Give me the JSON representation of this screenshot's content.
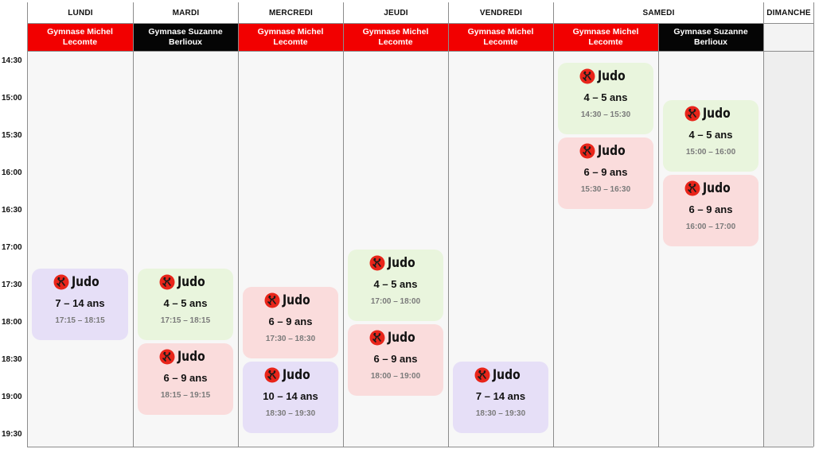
{
  "days": [
    "LUNDI",
    "MARDI",
    "MERCREDI",
    "JEUDI",
    "VENDREDI",
    "SAMEDI",
    "DIMANCHE"
  ],
  "venues": [
    {
      "name": "Gymnase Michel Lecomte",
      "color": "#f20000"
    },
    {
      "name": "Gymnase Suzanne Berlioux",
      "color": "#050505"
    },
    {
      "name": "Gymnase Michel Lecomte",
      "color": "#f20000"
    },
    {
      "name": "Gymnase Michel Lecomte",
      "color": "#f20000"
    },
    {
      "name": "Gymnase Michel Lecomte",
      "color": "#f20000"
    },
    {
      "name": "Gymnase Michel Lecomte",
      "color": "#f20000"
    },
    {
      "name": "Gymnase Suzanne Berlioux",
      "color": "#050505"
    },
    {
      "name": "",
      "color": "#f3f3f3"
    }
  ],
  "times": [
    "14:30",
    "15:00",
    "15:30",
    "16:00",
    "16:30",
    "17:00",
    "17:30",
    "18:00",
    "18:30",
    "19:00",
    "19:30"
  ],
  "sessions": [
    {
      "column": 0,
      "sport": "Judo",
      "age": "7 – 14 ans",
      "hours": "17:15 – 18:15",
      "color": "purple",
      "start": "17:15",
      "end": "18:15"
    },
    {
      "column": 1,
      "sport": "Judo",
      "age": "4 – 5 ans",
      "hours": "17:15 – 18:15",
      "color": "green",
      "start": "17:15",
      "end": "18:15"
    },
    {
      "column": 1,
      "sport": "Judo",
      "age": "6 – 9 ans",
      "hours": "18:15 – 19:15",
      "color": "pink",
      "start": "18:15",
      "end": "19:15"
    },
    {
      "column": 2,
      "sport": "Judo",
      "age": "6 – 9 ans",
      "hours": "17:30 – 18:30",
      "color": "pink",
      "start": "17:30",
      "end": "18:30"
    },
    {
      "column": 2,
      "sport": "Judo",
      "age": "10 – 14 ans",
      "hours": "18:30 – 19:30",
      "color": "purple",
      "start": "18:30",
      "end": "19:30"
    },
    {
      "column": 3,
      "sport": "Judo",
      "age": "4 – 5 ans",
      "hours": "17:00 – 18:00",
      "color": "green",
      "start": "17:00",
      "end": "18:00"
    },
    {
      "column": 3,
      "sport": "Judo",
      "age": "6 – 9 ans",
      "hours": "18:00 – 19:00",
      "color": "pink",
      "start": "18:00",
      "end": "19:00"
    },
    {
      "column": 4,
      "sport": "Judo",
      "age": "7 – 14 ans",
      "hours": "18:30 – 19:30",
      "color": "purple",
      "start": "18:30",
      "end": "19:30"
    },
    {
      "column": 5,
      "sport": "Judo",
      "age": "4 – 5 ans",
      "hours": "14:30 – 15:30",
      "color": "green",
      "start": "14:30",
      "end": "15:30"
    },
    {
      "column": 5,
      "sport": "Judo",
      "age": "6 – 9 ans",
      "hours": "15:30 – 16:30",
      "color": "pink",
      "start": "15:30",
      "end": "16:30"
    },
    {
      "column": 6,
      "sport": "Judo",
      "age": "4 – 5 ans",
      "hours": "15:00 – 16:00",
      "color": "green",
      "start": "15:00",
      "end": "16:00"
    },
    {
      "column": 6,
      "sport": "Judo",
      "age": "6 – 9 ans",
      "hours": "16:00 – 17:00",
      "color": "pink",
      "start": "16:00",
      "end": "17:00"
    }
  ],
  "colors": {
    "purple": "#e6dff7",
    "green": "#e9f5dd",
    "pink": "#fadcdc",
    "red": "#f20000",
    "black": "#050505"
  },
  "logo_icon": "judo-logo-icon"
}
